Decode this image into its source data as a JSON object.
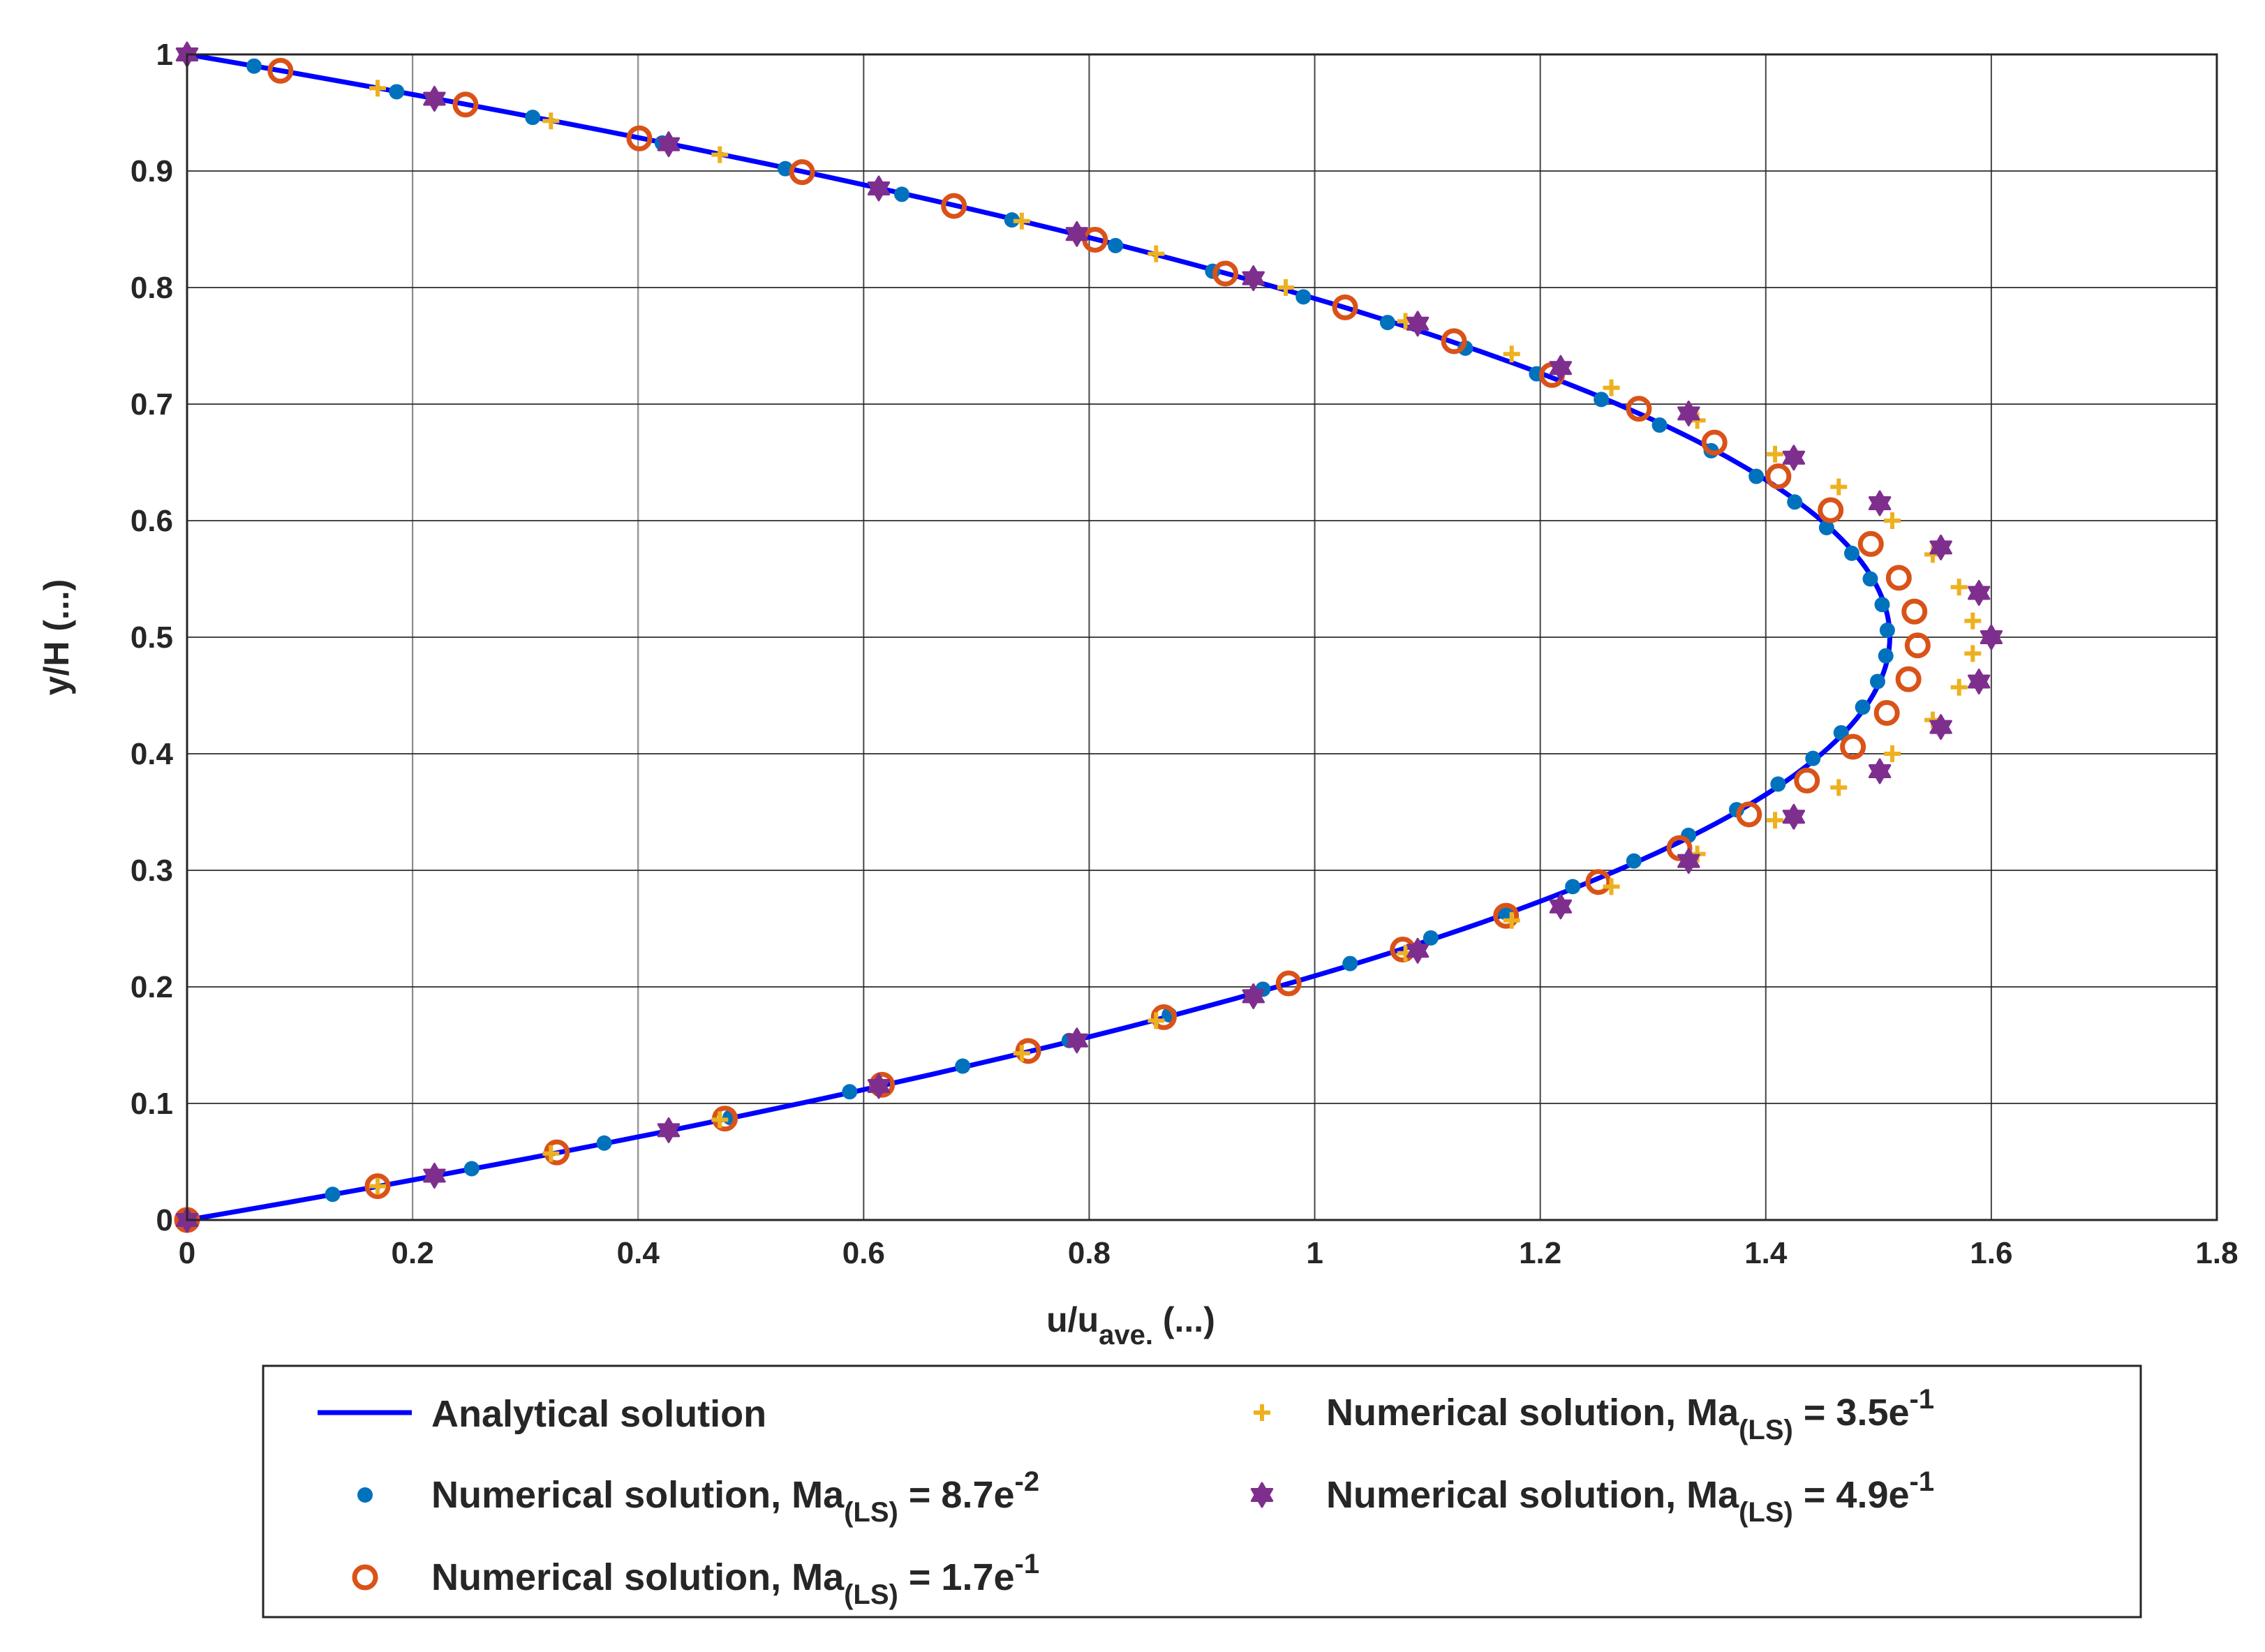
{
  "chart_data": {
    "type": "scatter",
    "title": "",
    "xlabel": {
      "main": "u/u",
      "sub": "ave.",
      "unit": " (...)"
    },
    "ylabel": "y/H (...)",
    "xlim": [
      0,
      1.8
    ],
    "ylim": [
      0,
      1
    ],
    "xticks": [
      "0",
      "0.2",
      "0.4",
      "0.6",
      "0.8",
      "1",
      "1.2",
      "1.4",
      "1.6",
      "1.8"
    ],
    "yticks": [
      "0",
      "0.1",
      "0.2",
      "0.3",
      "0.4",
      "0.5",
      "0.6",
      "0.7",
      "0.8",
      "0.9",
      "1"
    ],
    "grid": true,
    "legend_position": "bottom",
    "analytical": {
      "name": "Analytical solution",
      "color": "#0000ff",
      "formula": "u = 6 * 0.25 * (1 - (2y-1)^2)"
    },
    "series": [
      {
        "name": "Numerical solution, Ma",
        "sub": "(LS)",
        "value_prefix": " = 8.7e",
        "exponent": "-2",
        "marker": "dot",
        "color": "#0072bd",
        "deviation": 0.008,
        "y": [
          0,
          0.022,
          0.044,
          0.066,
          0.088,
          0.11,
          0.132,
          0.154,
          0.176,
          0.198,
          0.22,
          0.242,
          0.264,
          0.286,
          0.308,
          0.33,
          0.352,
          0.374,
          0.396,
          0.418,
          0.44,
          0.462,
          0.484,
          0.506,
          0.528,
          0.55,
          0.572,
          0.594,
          0.616,
          0.638,
          0.66,
          0.682,
          0.704,
          0.726,
          0.748,
          0.77,
          0.792,
          0.814,
          0.836,
          0.858,
          0.88,
          0.902,
          0.924,
          0.946,
          0.968,
          0.99
        ]
      },
      {
        "name": "Numerical solution, Ma",
        "sub": "(LS)",
        "value_prefix": " = 1.7e",
        "exponent": "-1",
        "marker": "circle",
        "color": "#d95319",
        "deviation": 0.035,
        "y": [
          0,
          0.029,
          0.058,
          0.087,
          0.116,
          0.145,
          0.174,
          0.203,
          0.232,
          0.261,
          0.29,
          0.319,
          0.348,
          0.377,
          0.406,
          0.435,
          0.464,
          0.493,
          0.522,
          0.551,
          0.58,
          0.609,
          0.638,
          0.667,
          0.696,
          0.725,
          0.754,
          0.783,
          0.812,
          0.841,
          0.87,
          0.899,
          0.928,
          0.957,
          0.986
        ]
      },
      {
        "name": "Numerical solution, Ma",
        "sub": "(LS)",
        "value_prefix": " = 3.5e",
        "exponent": "-1",
        "marker": "plus",
        "color": "#edb120",
        "deviation": 0.085,
        "y": [
          0.029,
          0.057,
          0.086,
          0.143,
          0.171,
          0.229,
          0.257,
          0.286,
          0.314,
          0.343,
          0.371,
          0.4,
          0.429,
          0.457,
          0.486,
          0.514,
          0.543,
          0.571,
          0.6,
          0.629,
          0.657,
          0.686,
          0.714,
          0.743,
          0.771,
          0.8,
          0.829,
          0.857,
          0.914,
          0.943,
          0.971
        ]
      },
      {
        "name": "Numerical solution, Ma",
        "sub": "(LS)",
        "value_prefix": " = 4.9e",
        "exponent": "-1",
        "marker": "hexagram",
        "color": "#7e2f8e",
        "deviation": 0.1,
        "y": [
          0,
          0.038,
          0.077,
          0.115,
          0.154,
          0.192,
          0.231,
          0.269,
          0.308,
          0.346,
          0.385,
          0.423,
          0.462,
          0.5,
          0.538,
          0.577,
          0.615,
          0.654,
          0.692,
          0.731,
          0.769,
          0.808,
          0.846,
          0.885,
          0.923,
          0.962,
          1.0
        ]
      }
    ]
  }
}
